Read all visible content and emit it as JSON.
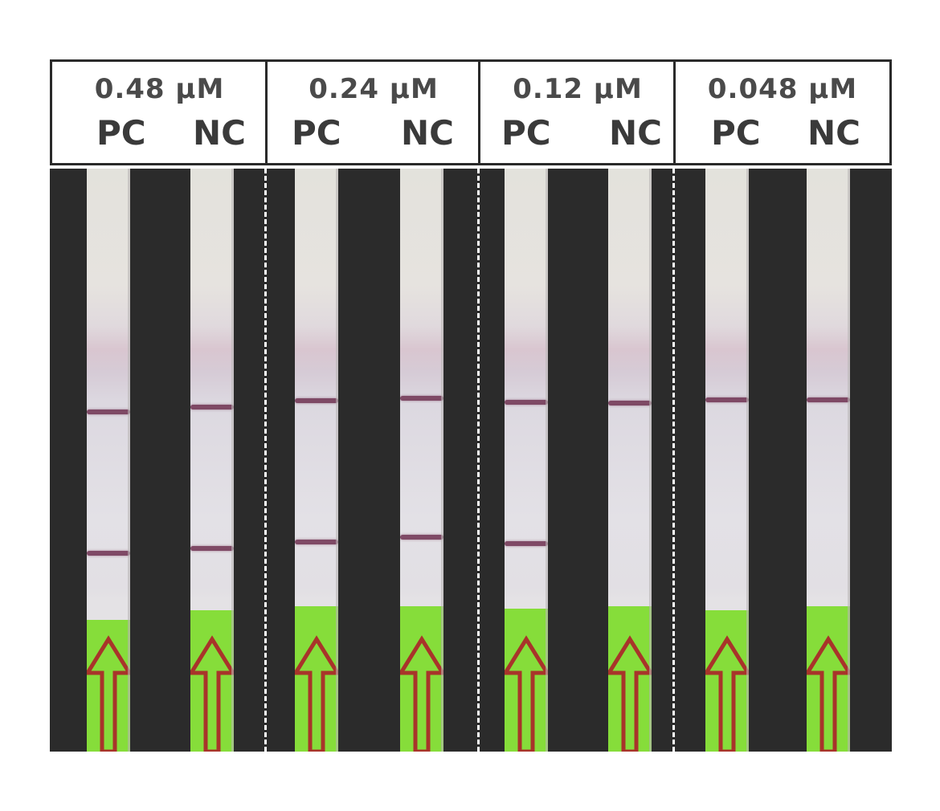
{
  "groups": [
    {
      "concentration": "0.48 µM",
      "lanes": [
        {
          "label": "PC",
          "control_line": true,
          "test_line": true
        },
        {
          "label": "NC",
          "control_line": true,
          "test_line": true
        }
      ]
    },
    {
      "concentration": "0.24 µM",
      "lanes": [
        {
          "label": "PC",
          "control_line": true,
          "test_line": true
        },
        {
          "label": "NC",
          "control_line": true,
          "test_line": true
        }
      ]
    },
    {
      "concentration": "0.12 µM",
      "lanes": [
        {
          "label": "PC",
          "control_line": true,
          "test_line": true
        },
        {
          "label": "NC",
          "control_line": true,
          "test_line": false
        }
      ]
    },
    {
      "concentration": "0.048 µM",
      "lanes": [
        {
          "label": "PC",
          "control_line": true,
          "test_line": false
        },
        {
          "label": "NC",
          "control_line": true,
          "test_line": false
        }
      ]
    }
  ],
  "colors": {
    "panel_background": "#2b2b2b",
    "strip_membrane": "#e3e1e6",
    "band": "#6e3150",
    "sample_pad": "#86dd3a",
    "arrow": "#a8342a"
  }
}
